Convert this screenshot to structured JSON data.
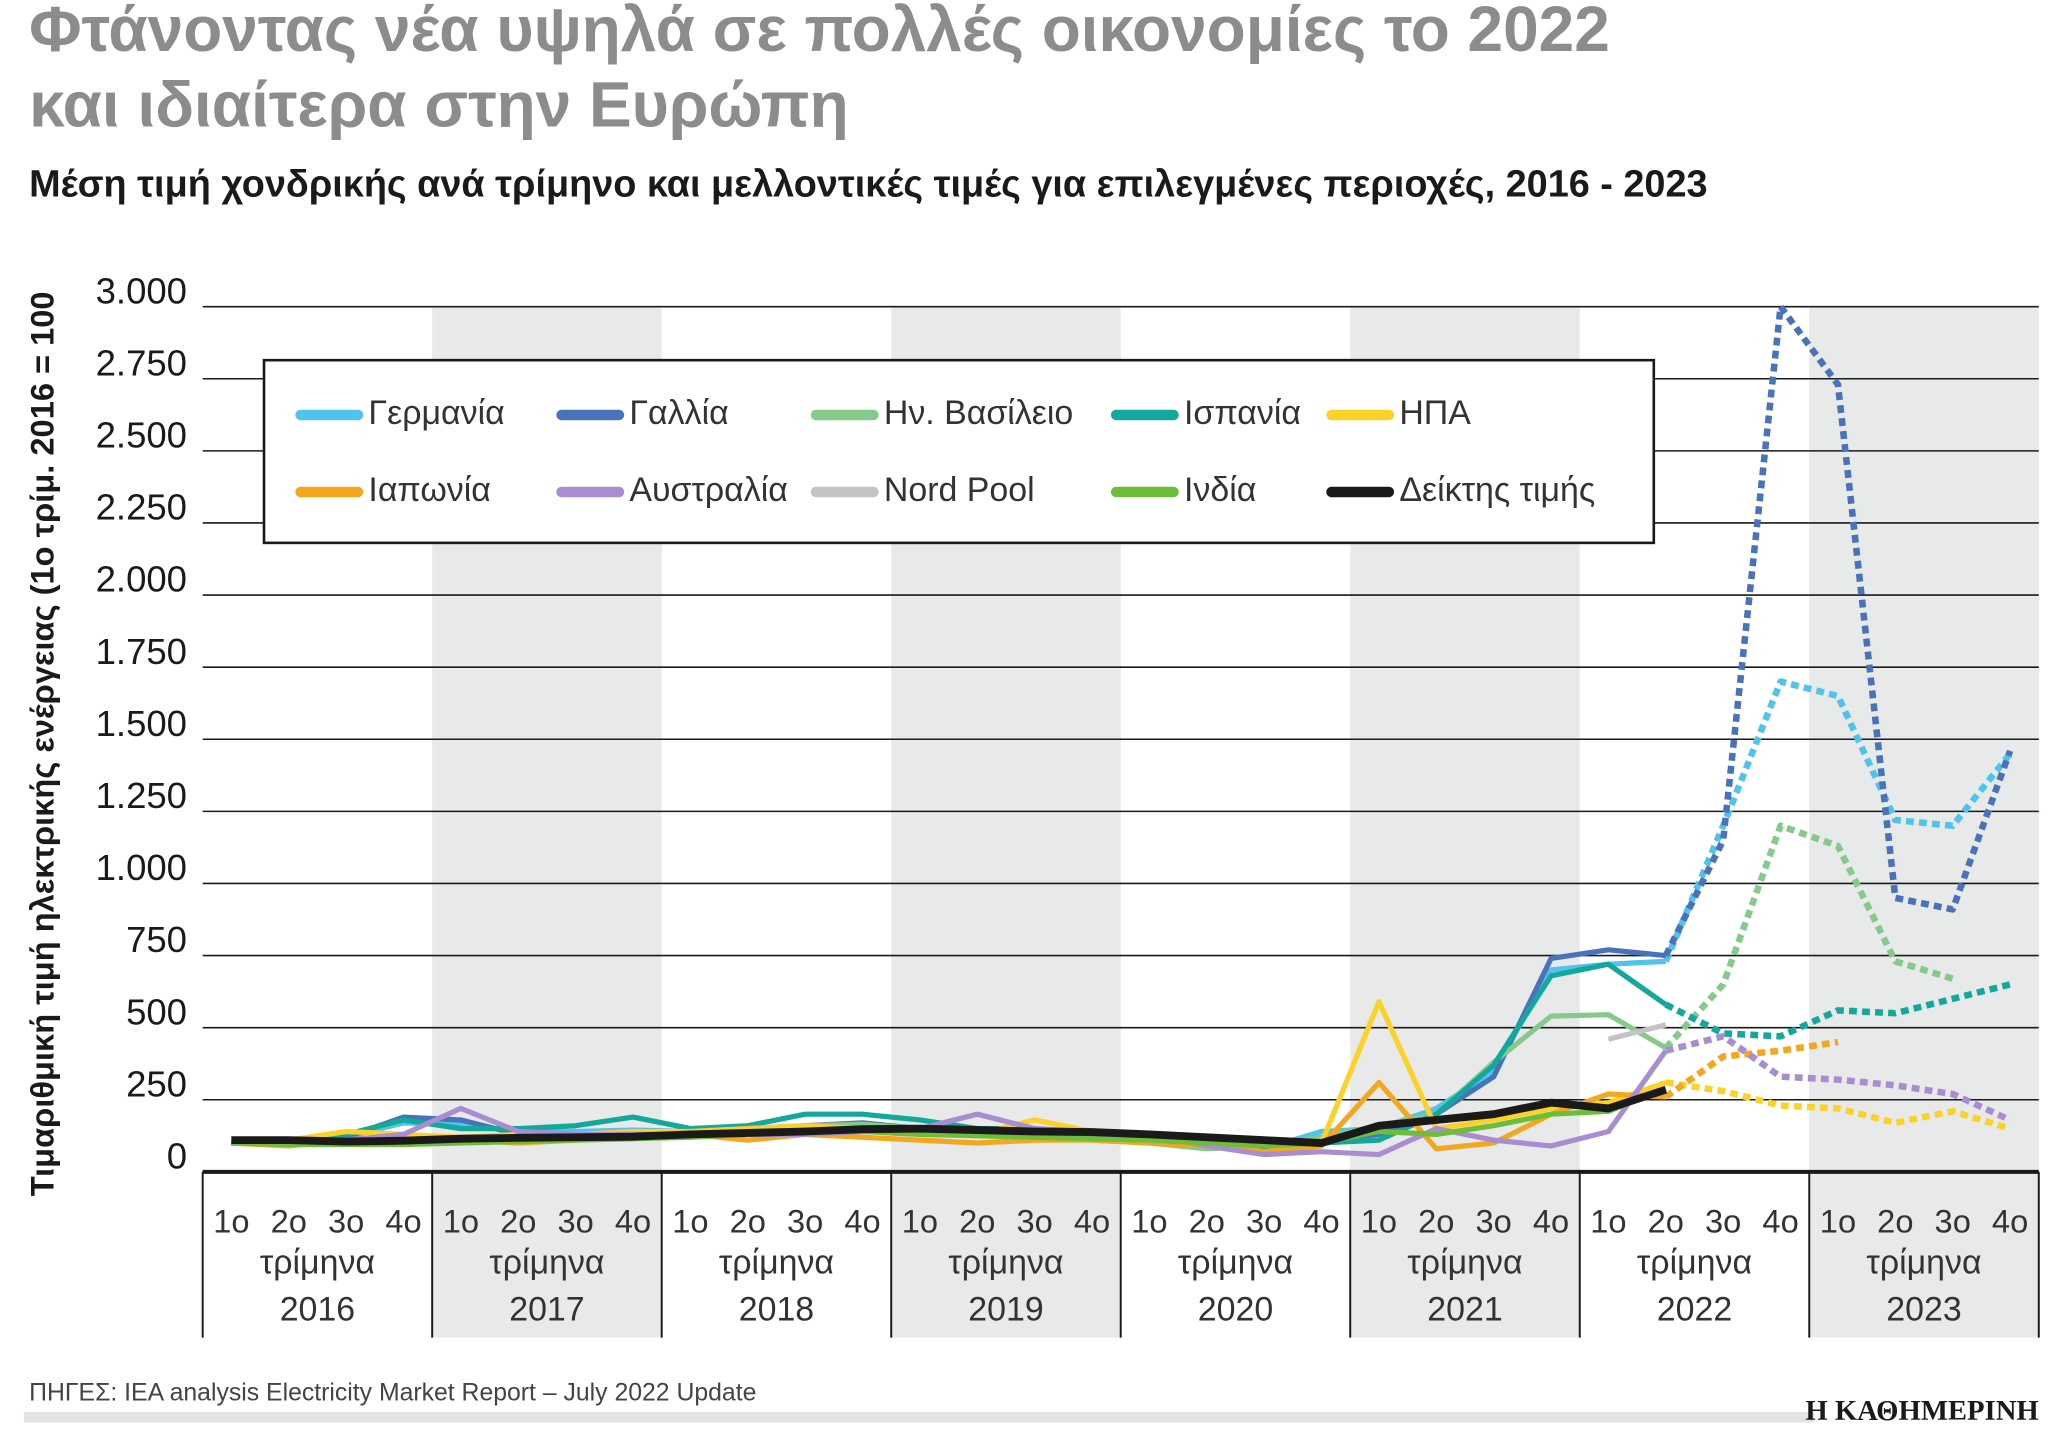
{
  "chart_data": {
    "type": "line",
    "title": [
      "Φτάνοντας νέα υψηλά σε πολλές οικονομίες το 2022",
      "και ιδιαίτερα στην Ευρώπη"
    ],
    "subtitle": "Μέση τιμή χονδρικής ανά τρίμηνο και μελλοντικές τιμές για επιλεγμένες περιοχές, 2016 - 2023",
    "y_label": "Τιμαριθμική τιμή ηλεκτρικής ενέργειας (1ο τρίμ. 2016 = 100",
    "source": "ΠΗΓΕΣ: IEA analysis Electricity Market Report – July 2022 Update",
    "publisher": "Η ΚΑΘΗΜΕΡΙΝΗ",
    "categories": [
      "1ο",
      "2ο",
      "3ο",
      "4ο",
      "1ο",
      "2ο",
      "3ο",
      "4ο",
      "1ο",
      "2ο",
      "3ο",
      "4ο",
      "1ο",
      "2ο",
      "3ο",
      "4ο",
      "1ο",
      "2ο",
      "3ο",
      "4ο",
      "1ο",
      "2ο",
      "3ο",
      "4ο",
      "1ο",
      "2ο",
      "3ο",
      "4ο",
      "1ο",
      "2ο",
      "3ο",
      "4ο"
    ],
    "year_groups": [
      {
        "label": "τρίμηνα",
        "year": "2016"
      },
      {
        "label": "τρίμηνα",
        "year": "2017"
      },
      {
        "label": "τρίμηνα",
        "year": "2018"
      },
      {
        "label": "τρίμηνα",
        "year": "2019"
      },
      {
        "label": "τρίμηνα",
        "year": "2020"
      },
      {
        "label": "τρίμηνα",
        "year": "2021"
      },
      {
        "label": "τρίμηνα",
        "year": "2022"
      },
      {
        "label": "τρίμηνα",
        "year": "2023"
      }
    ],
    "forecast_from": 25,
    "ylim": [
      0,
      3000
    ],
    "yticks": [
      0,
      250,
      500,
      750,
      {
        "value": 1000,
        "label": "1.000"
      },
      {
        "value": 1250,
        "label": "1.250"
      },
      {
        "value": 1500,
        "label": "1.500"
      },
      {
        "value": 1750,
        "label": "1.750"
      },
      {
        "value": 2000,
        "label": "2.000"
      },
      {
        "value": 2250,
        "label": "2.250"
      },
      {
        "value": 2500,
        "label": "2.500"
      },
      {
        "value": 2750,
        "label": "2.750"
      },
      {
        "value": 3000,
        "label": "3.000"
      }
    ],
    "grid": true,
    "series": [
      {
        "name": "Γερμανία",
        "color": "#4fc3ec",
        "values": [
          100,
          105,
          120,
          170,
          165,
          140,
          140,
          145,
          140,
          150,
          155,
          160,
          150,
          140,
          140,
          140,
          120,
          100,
          80,
          140,
          150,
          220,
          350,
          700,
          720,
          730,
          1200,
          1700,
          1650,
          1220,
          1200,
          1450
        ]
      },
      {
        "name": "Γαλλία",
        "color": "#4a72bb",
        "values": [
          100,
          100,
          120,
          190,
          180,
          130,
          130,
          140,
          140,
          150,
          160,
          170,
          150,
          130,
          130,
          120,
          110,
          90,
          80,
          110,
          130,
          200,
          330,
          740,
          770,
          750,
          1150,
          3000,
          2730,
          950,
          910,
          1460
        ]
      },
      {
        "name": "Ην. Βασίλειο",
        "color": "#85c98b",
        "values": [
          100,
          100,
          100,
          105,
          110,
          115,
          120,
          125,
          140,
          150,
          160,
          165,
          150,
          130,
          120,
          110,
          100,
          80,
          90,
          120,
          160,
          200,
          380,
          540,
          545,
          430,
          650,
          1200,
          1130,
          730,
          670,
          null
        ]
      },
      {
        "name": "Ισπανία",
        "color": "#14a89d",
        "values": [
          100,
          100,
          130,
          180,
          150,
          150,
          160,
          190,
          150,
          160,
          200,
          200,
          180,
          150,
          150,
          130,
          120,
          100,
          90,
          100,
          110,
          200,
          370,
          680,
          720,
          580,
          480,
          470,
          560,
          550,
          600,
          650
        ]
      },
      {
        "name": "ΗΠΑ",
        "color": "#fcd12a",
        "values": [
          100,
          110,
          140,
          130,
          120,
          130,
          130,
          140,
          140,
          150,
          160,
          150,
          140,
          130,
          180,
          140,
          120,
          100,
          90,
          100,
          590,
          150,
          180,
          220,
          240,
          310,
          280,
          230,
          220,
          170,
          210,
          150
        ]
      },
      {
        "name": "Ιαπωνία",
        "color": "#f2a71e",
        "values": [
          100,
          90,
          110,
          110,
          110,
          100,
          110,
          120,
          130,
          110,
          130,
          120,
          110,
          100,
          110,
          110,
          100,
          90,
          70,
          90,
          310,
          80,
          100,
          200,
          270,
          260,
          400,
          420,
          450,
          null,
          null,
          null
        ]
      },
      {
        "name": "Αυστραλία",
        "color": "#a88dd0",
        "values": [
          100,
          100,
          110,
          130,
          220,
          140,
          130,
          130,
          130,
          130,
          130,
          140,
          150,
          200,
          150,
          140,
          130,
          90,
          60,
          70,
          60,
          150,
          110,
          90,
          140,
          420,
          470,
          330,
          320,
          300,
          270,
          180
        ]
      },
      {
        "name": "Nord Pool",
        "color": "#c4c4c4",
        "values": [
          null,
          null,
          null,
          null,
          null,
          null,
          null,
          null,
          null,
          null,
          null,
          null,
          null,
          null,
          null,
          null,
          null,
          null,
          null,
          null,
          null,
          null,
          null,
          null,
          460,
          510,
          null,
          null,
          null,
          null,
          null,
          null
        ]
      },
      {
        "name": "Ινδία",
        "color": "#6dbd3b",
        "values": [
          100,
          95,
          95,
          95,
          100,
          105,
          110,
          115,
          120,
          130,
          140,
          140,
          130,
          125,
          120,
          115,
          110,
          100,
          90,
          100,
          140,
          130,
          160,
          200,
          210,
          290,
          null,
          null,
          null,
          null,
          null,
          null
        ]
      },
      {
        "name": "Δείκτης τιμής",
        "color": "#1a1a1a",
        "values": [
          110,
          110,
          105,
          108,
          115,
          118,
          120,
          122,
          130,
          135,
          140,
          148,
          150,
          145,
          140,
          138,
          130,
          120,
          110,
          100,
          160,
          180,
          200,
          240,
          220,
          285,
          null,
          null,
          null,
          null,
          null,
          null
        ]
      }
    ]
  }
}
